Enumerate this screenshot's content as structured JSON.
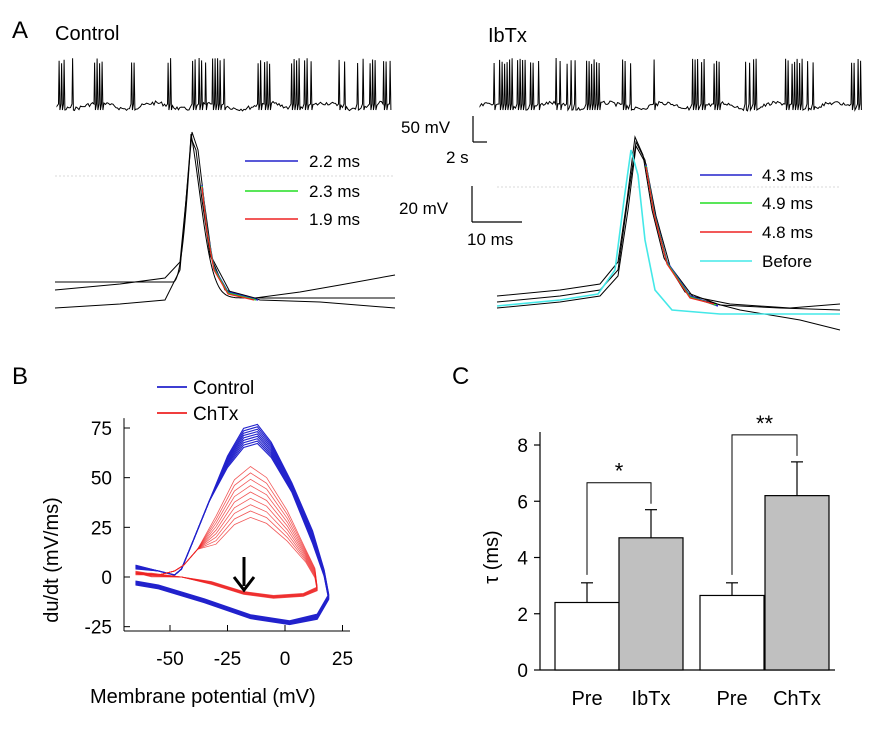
{
  "panel_a": {
    "letter": "A",
    "control": {
      "title": "Control",
      "legend": [
        {
          "label": "2.2 ms",
          "color": "#2222cc"
        },
        {
          "label": "2.3 ms",
          "color": "#22dd22"
        },
        {
          "label": "1.9 ms",
          "color": "#ee2222"
        }
      ]
    },
    "ibtx": {
      "title": "IbTx",
      "legend": [
        {
          "label": "4.3 ms",
          "color": "#2222cc"
        },
        {
          "label": "4.9 ms",
          "color": "#22dd22"
        },
        {
          "label": "4.8 ms",
          "color": "#ee2222"
        },
        {
          "label": "Before",
          "color": "#44e8e8"
        }
      ]
    },
    "scalebar_top": {
      "y_label": "50 mV",
      "x_label": "2 s"
    },
    "scalebar_bottom": {
      "y_label": "20 mV",
      "x_label": "10 ms"
    }
  },
  "panel_b": {
    "letter": "B",
    "legend": [
      {
        "label": "Control",
        "color": "#2222cc"
      },
      {
        "label": "ChTx",
        "color": "#ee2222"
      }
    ],
    "chart_data": {
      "type": "line",
      "xlabel": "Membrane potential (mV)",
      "ylabel": "du/dt (mV/ms)",
      "xlim": [
        -65,
        25
      ],
      "ylim": [
        -30,
        80
      ],
      "xticks": [
        -50,
        -25,
        0,
        25
      ],
      "yticks": [
        75,
        50,
        25,
        0,
        -25
      ],
      "xtick_labels": [
        "-50",
        "-25",
        "0",
        "25"
      ],
      "ytick_labels": [
        "75",
        "50",
        "25",
        "0",
        "-25"
      ]
    }
  },
  "panel_c": {
    "letter": "C",
    "chart_data": {
      "type": "bar",
      "categories": [
        "Pre",
        "IbTx",
        "Pre",
        "ChTx"
      ],
      "values": [
        2.4,
        4.7,
        2.65,
        6.2
      ],
      "errors": [
        0.7,
        1.0,
        0.45,
        1.2
      ],
      "bar_colors": [
        "#ffffff",
        "#c0c0c0",
        "#ffffff",
        "#c0c0c0"
      ],
      "ylabel": "τ (ms)",
      "ylim": [
        0,
        8.5
      ],
      "yticks": [
        0,
        2,
        4,
        6,
        8
      ],
      "ytick_labels": [
        "0",
        "2",
        "4",
        "6",
        "8"
      ],
      "significance": [
        {
          "pair": [
            0,
            1
          ],
          "label": "*"
        },
        {
          "pair": [
            2,
            3
          ],
          "label": "**"
        }
      ]
    }
  }
}
